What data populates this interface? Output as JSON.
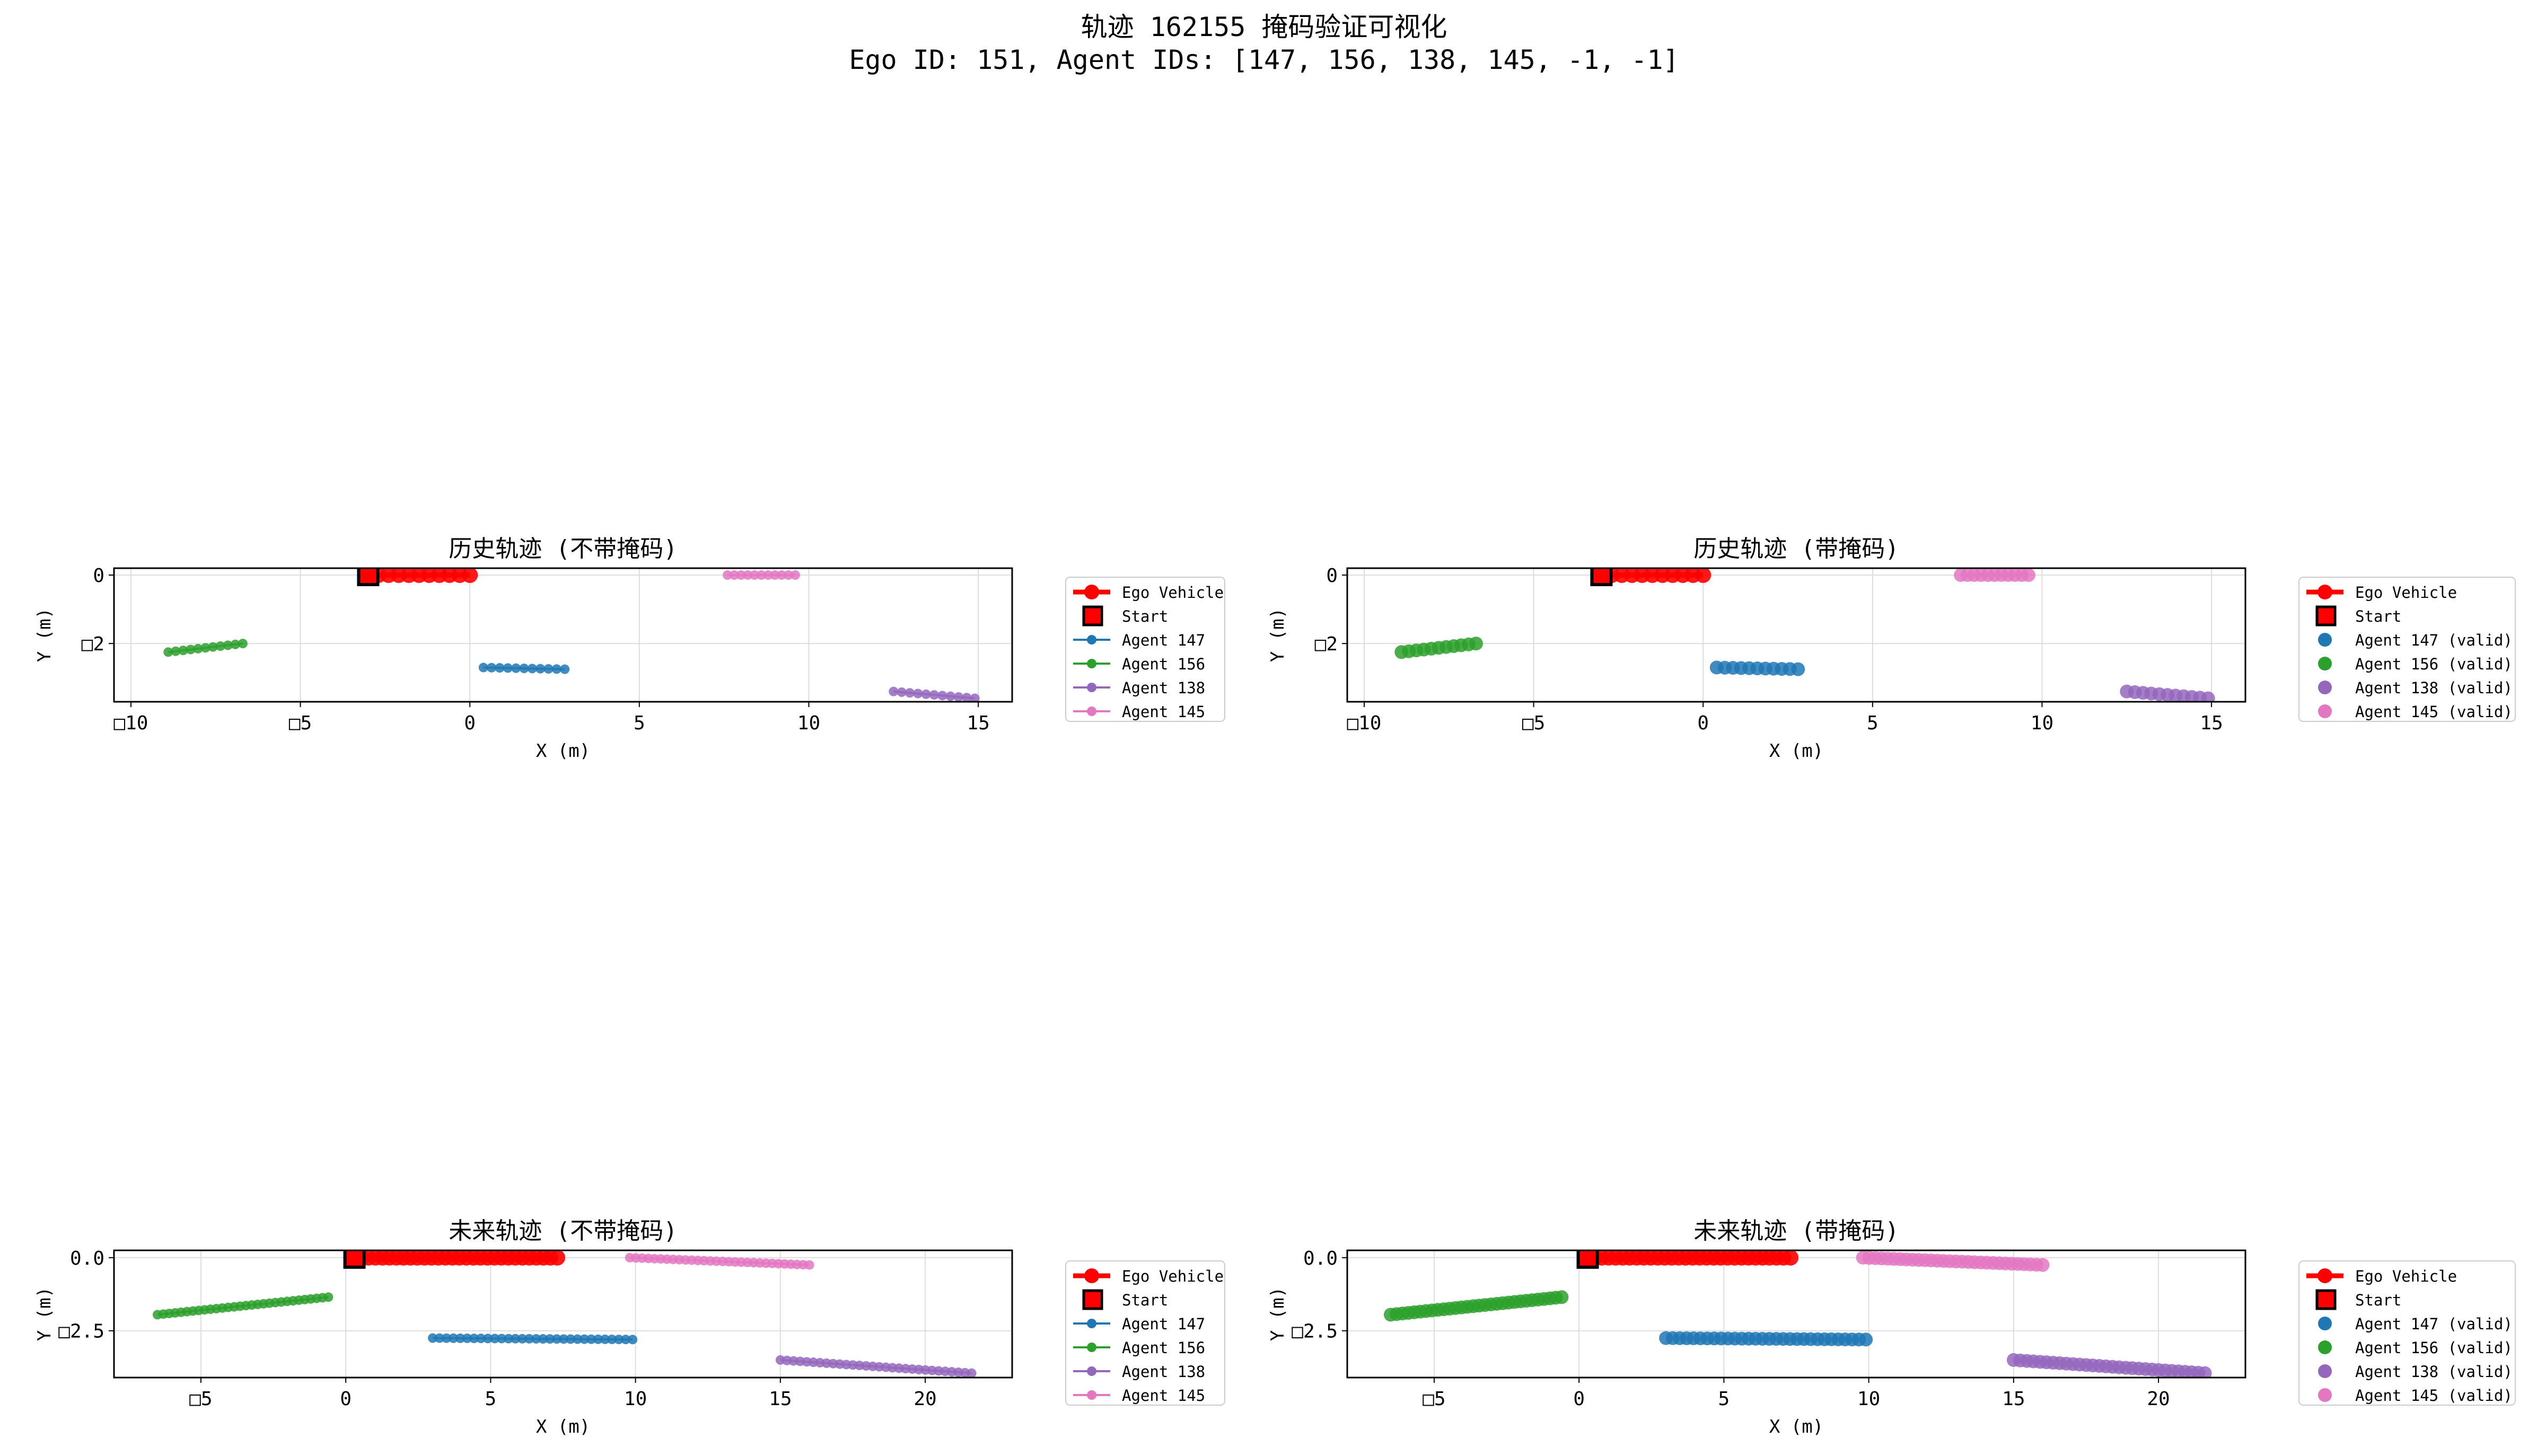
{
  "suptitle": {
    "line1": "轨迹 162155 掩码验证可视化",
    "line2": "Ego ID: 151, Agent IDs: [147, 156, 138, 145, -1, -1]"
  },
  "colors": {
    "ego": "#ff0000",
    "start": "#ff0000",
    "agent_147": "#1f77b4",
    "agent_156": "#2ca02c",
    "agent_138": "#9467bd",
    "agent_145": "#e377c2",
    "grid": "#dddddd"
  },
  "chart_data": [
    {
      "type": "line",
      "title": "历史轨迹 (不带掩码)",
      "xlabel": "X (m)",
      "ylabel": "Y (m)",
      "xlim": [
        -10.5,
        16
      ],
      "ylim": [
        -3.7,
        0.2
      ],
      "xticks": [
        -10,
        -5,
        0,
        5,
        10,
        15
      ],
      "xtick_labels": [
        "□10",
        "□5",
        "0",
        "5",
        "10",
        "15"
      ],
      "yticks": [
        0,
        -2
      ],
      "ytick_labels": [
        "0",
        "□2"
      ],
      "grid": true,
      "legend_position": "outside right",
      "legend": [
        "Ego Vehicle",
        "Start",
        "Agent 147",
        "Agent 156",
        "Agent 138",
        "Agent 145"
      ],
      "series": [
        {
          "name": "Ego Vehicle",
          "key": "ego",
          "x_start": -3.0,
          "x_end": 0.0,
          "y_start": 0.0,
          "y_end": 0.0,
          "n": 11
        },
        {
          "name": "Agent 147",
          "key": "agent_147",
          "x_start": 0.4,
          "x_end": 2.8,
          "y_start": -2.7,
          "y_end": -2.75,
          "n": 11
        },
        {
          "name": "Agent 156",
          "key": "agent_156",
          "x_start": -8.9,
          "x_end": -6.7,
          "y_start": -2.25,
          "y_end": -2.0,
          "n": 11
        },
        {
          "name": "Agent 138",
          "key": "agent_138",
          "x_start": 12.5,
          "x_end": 14.9,
          "y_start": -3.4,
          "y_end": -3.6,
          "n": 11
        },
        {
          "name": "Agent 145",
          "key": "agent_145",
          "x_start": 7.6,
          "x_end": 9.6,
          "y_start": 0.0,
          "y_end": 0.0,
          "n": 11
        }
      ],
      "start": {
        "x": -3.0,
        "y": 0.0
      }
    },
    {
      "type": "scatter",
      "title": "历史轨迹 (带掩码)",
      "xlabel": "X (m)",
      "ylabel": "Y (m)",
      "xlim": [
        -10.5,
        16
      ],
      "ylim": [
        -3.7,
        0.2
      ],
      "xticks": [
        -10,
        -5,
        0,
        5,
        10,
        15
      ],
      "xtick_labels": [
        "□10",
        "□5",
        "0",
        "5",
        "10",
        "15"
      ],
      "yticks": [
        0,
        -2
      ],
      "ytick_labels": [
        "0",
        "□2"
      ],
      "grid": true,
      "legend_position": "outside right",
      "legend": [
        "Ego Vehicle",
        "Start",
        "Agent 147 (valid)",
        "Agent 156 (valid)",
        "Agent 138 (valid)",
        "Agent 145 (valid)"
      ],
      "series": [
        {
          "name": "Ego Vehicle",
          "key": "ego",
          "x_start": -3.0,
          "x_end": 0.0,
          "y_start": 0.0,
          "y_end": 0.0,
          "n": 11
        },
        {
          "name": "Agent 147 (valid)",
          "key": "agent_147",
          "x_start": 0.4,
          "x_end": 2.8,
          "y_start": -2.7,
          "y_end": -2.75,
          "n": 11
        },
        {
          "name": "Agent 156 (valid)",
          "key": "agent_156",
          "x_start": -8.9,
          "x_end": -6.7,
          "y_start": -2.25,
          "y_end": -2.0,
          "n": 11
        },
        {
          "name": "Agent 138 (valid)",
          "key": "agent_138",
          "x_start": 12.5,
          "x_end": 14.9,
          "y_start": -3.4,
          "y_end": -3.6,
          "n": 11
        },
        {
          "name": "Agent 145 (valid)",
          "key": "agent_145",
          "x_start": 7.6,
          "x_end": 9.6,
          "y_start": 0.0,
          "y_end": 0.0,
          "n": 11
        }
      ],
      "start": {
        "x": -3.0,
        "y": 0.0
      }
    },
    {
      "type": "line",
      "title": "未来轨迹 (不带掩码)",
      "xlabel": "X (m)",
      "ylabel": "Y (m)",
      "xlim": [
        -8,
        23
      ],
      "ylim": [
        -4.1,
        0.25
      ],
      "xticks": [
        -5,
        0,
        5,
        10,
        15,
        20
      ],
      "xtick_labels": [
        "□5",
        "0",
        "5",
        "10",
        "15",
        "20"
      ],
      "yticks": [
        0,
        -2.5
      ],
      "ytick_labels": [
        "0.0",
        "□2.5"
      ],
      "grid": true,
      "legend_position": "outside right",
      "legend": [
        "Ego Vehicle",
        "Start",
        "Agent 147",
        "Agent 156",
        "Agent 138",
        "Agent 145"
      ],
      "series": [
        {
          "name": "Ego Vehicle",
          "key": "ego",
          "x_start": 0.3,
          "x_end": 7.3,
          "y_start": 0.0,
          "y_end": 0.0,
          "n": 30
        },
        {
          "name": "Agent 147",
          "key": "agent_147",
          "x_start": 3.0,
          "x_end": 9.9,
          "y_start": -2.75,
          "y_end": -2.8,
          "n": 30
        },
        {
          "name": "Agent 156",
          "key": "agent_156",
          "x_start": -6.5,
          "x_end": -0.6,
          "y_start": -1.95,
          "y_end": -1.35,
          "n": 30
        },
        {
          "name": "Agent 138",
          "key": "agent_138",
          "x_start": 15.0,
          "x_end": 21.6,
          "y_start": -3.5,
          "y_end": -3.95,
          "n": 30
        },
        {
          "name": "Agent 145",
          "key": "agent_145",
          "x_start": 9.8,
          "x_end": 16.0,
          "y_start": 0.0,
          "y_end": -0.25,
          "n": 30
        }
      ],
      "start": {
        "x": 0.3,
        "y": 0.0
      }
    },
    {
      "type": "scatter",
      "title": "未来轨迹 (带掩码)",
      "xlabel": "X (m)",
      "ylabel": "Y (m)",
      "xlim": [
        -8,
        23
      ],
      "ylim": [
        -4.1,
        0.25
      ],
      "xticks": [
        -5,
        0,
        5,
        10,
        15,
        20
      ],
      "xtick_labels": [
        "□5",
        "0",
        "5",
        "10",
        "15",
        "20"
      ],
      "yticks": [
        0,
        -2.5
      ],
      "ytick_labels": [
        "0.0",
        "□2.5"
      ],
      "grid": true,
      "legend_position": "outside right",
      "legend": [
        "Ego Vehicle",
        "Start",
        "Agent 147 (valid)",
        "Agent 156 (valid)",
        "Agent 138 (valid)",
        "Agent 145 (valid)"
      ],
      "series": [
        {
          "name": "Ego Vehicle",
          "key": "ego",
          "x_start": 0.3,
          "x_end": 7.3,
          "y_start": 0.0,
          "y_end": 0.0,
          "n": 30
        },
        {
          "name": "Agent 147 (valid)",
          "key": "agent_147",
          "x_start": 3.0,
          "x_end": 9.9,
          "y_start": -2.75,
          "y_end": -2.8,
          "n": 30
        },
        {
          "name": "Agent 156 (valid)",
          "key": "agent_156",
          "x_start": -6.5,
          "x_end": -0.6,
          "y_start": -1.95,
          "y_end": -1.35,
          "n": 30
        },
        {
          "name": "Agent 138 (valid)",
          "key": "agent_138",
          "x_start": 15.0,
          "x_end": 21.6,
          "y_start": -3.5,
          "y_end": -3.95,
          "n": 30
        },
        {
          "name": "Agent 145 (valid)",
          "key": "agent_145",
          "x_start": 9.8,
          "x_end": 16.0,
          "y_start": 0.0,
          "y_end": -0.25,
          "n": 30
        }
      ],
      "start": {
        "x": 0.3,
        "y": 0.0
      }
    }
  ]
}
